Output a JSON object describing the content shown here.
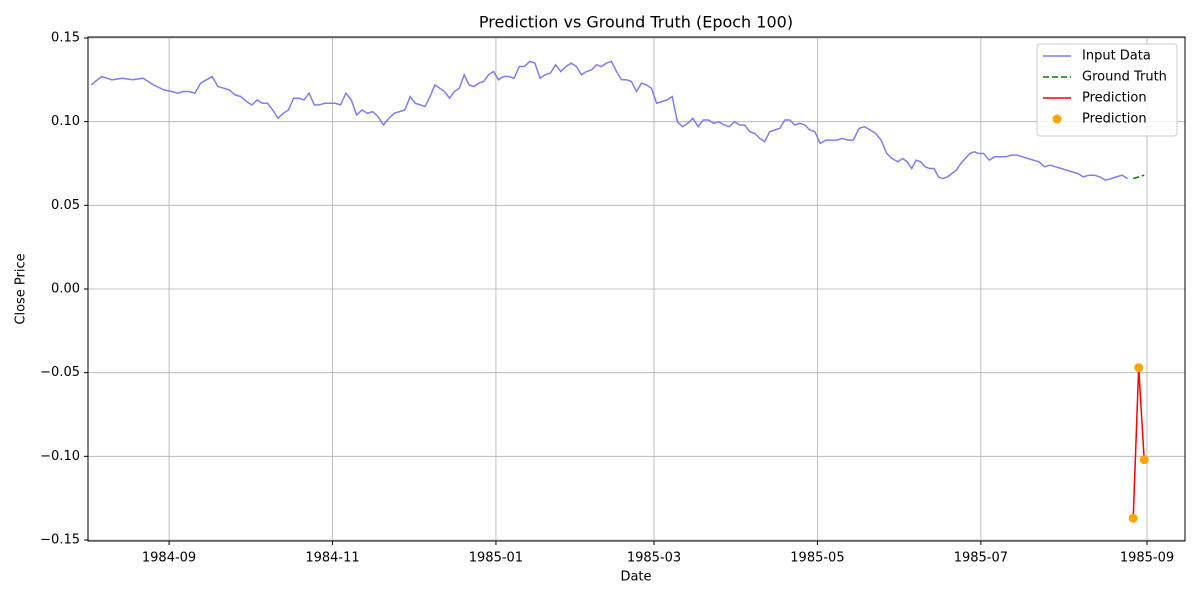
{
  "chart_data": {
    "type": "line",
    "title": "Prediction vs Ground Truth (Epoch 100)",
    "x_label": "Date",
    "y_label": "Close Price",
    "ylim": [
      -0.1506,
      0.1506
    ],
    "yticks": [
      {
        "value": -0.15,
        "label": "−0.15"
      },
      {
        "value": -0.1,
        "label": "−0.10"
      },
      {
        "value": -0.05,
        "label": "−0.05"
      },
      {
        "value": 0,
        "label": "0.00"
      },
      0.05,
      {
        "value": 0.1,
        "label": "0.10"
      },
      0.15
    ],
    "xlim": [
      "1984-08",
      "1985-09"
    ],
    "xticks": [
      "1984-09",
      "1984-11",
      "1985-01",
      "1985-03",
      "1985-05",
      "1985-07",
      "1985-09"
    ],
    "grid": true,
    "legend": "upper right",
    "series": [
      {
        "name": "Input Data",
        "type": "line",
        "color": "#7070f8",
        "alpha": 0.9,
        "x": [
          "1984-08",
          "1984-08",
          "1984-08",
          "1984-08",
          "1984-08",
          "1984-08",
          "1984-08",
          "1984-08",
          "1984-09",
          "1984-09",
          "1984-09",
          "1984-09",
          "1984-09",
          "1984-09",
          "1984-09",
          "1984-09",
          "1984-09",
          "1984-09",
          "1984-09",
          "1984-09",
          "1984-09",
          "1984-09",
          "1984-10",
          "1984-10",
          "1984-10",
          "1984-10",
          "1984-10",
          "1984-10",
          "1984-10",
          "1984-10",
          "1984-10",
          "1984-10",
          "1984-10",
          "1984-10",
          "1984-10",
          "1984-10",
          "1984-10",
          "1984-10",
          "1984-11",
          "1984-11",
          "1984-11",
          "1984-11",
          "1984-11",
          "1984-11",
          "1984-11",
          "1984-11",
          "1984-11",
          "1984-11",
          "1984-11",
          "1984-11",
          "1984-11",
          "1984-11",
          "1984-11",
          "1984-12",
          "1984-12",
          "1984-12",
          "1984-12",
          "1984-12",
          "1984-12",
          "1984-12",
          "1984-12",
          "1984-12",
          "1984-12",
          "1984-12",
          "1984-12",
          "1984-12",
          "1984-12",
          "1984-12",
          "1984-12",
          "1984-12",
          "1985-01",
          "1985-01",
          "1985-01",
          "1985-01",
          "1985-01",
          "1985-01",
          "1985-01",
          "1985-01",
          "1985-01",
          "1985-01",
          "1985-01",
          "1985-01",
          "1985-01",
          "1985-01",
          "1985-01",
          "1985-01",
          "1985-02",
          "1985-02",
          "1985-02",
          "1985-02",
          "1985-02",
          "1985-02",
          "1985-02",
          "1985-02",
          "1985-02",
          "1985-02",
          "1985-02",
          "1985-02",
          "1985-02",
          "1985-02",
          "1985-02",
          "1985-03",
          "1985-03",
          "1985-03",
          "1985-03",
          "1985-03",
          "1985-03",
          "1985-03",
          "1985-03",
          "1985-03",
          "1985-03",
          "1985-03",
          "1985-03",
          "1985-03",
          "1985-03",
          "1985-03",
          "1985-03",
          "1985-04",
          "1985-04",
          "1985-04",
          "1985-04",
          "1985-04",
          "1985-04",
          "1985-04",
          "1985-04",
          "1985-04",
          "1985-04",
          "1985-04",
          "1985-04",
          "1985-04",
          "1985-04",
          "1985-04",
          "1985-04",
          "1985-05",
          "1985-05",
          "1985-05",
          "1985-05",
          "1985-05",
          "1985-05",
          "1985-05",
          "1985-05",
          "1985-05",
          "1985-05",
          "1985-05",
          "1985-05",
          "1985-05",
          "1985-05",
          "1985-05",
          "1985-06",
          "1985-06",
          "1985-06",
          "1985-06",
          "1985-06",
          "1985-06",
          "1985-06",
          "1985-06",
          "1985-06",
          "1985-06",
          "1985-06",
          "1985-06",
          "1985-06",
          "1985-06",
          "1985-06",
          "1985-06",
          "1985-06",
          "1985-06",
          "1985-07",
          "1985-07",
          "1985-07",
          "1985-07",
          "1985-07",
          "1985-07",
          "1985-07",
          "1985-07",
          "1985-07",
          "1985-07",
          "1985-07",
          "1985-07",
          "1985-07",
          "1985-07",
          "1985-07",
          "1985-08",
          "1985-08",
          "1985-08",
          "1985-08",
          "1985-08",
          "1985-08",
          "1985-08",
          "1985-08",
          "1985-08",
          "1985-08",
          "1985-08",
          "1985-08"
        ],
        "values": [
          0.122,
          0.127,
          0.125,
          0.126,
          0.125,
          0.126,
          0.122,
          0.119,
          0.118,
          0.117,
          0.118,
          0.118,
          0.117,
          0.123,
          0.125,
          0.127,
          0.121,
          0.12,
          0.119,
          0.116,
          0.115,
          0.112,
          0.11,
          0.113,
          0.111,
          0.111,
          0.107,
          0.102,
          0.105,
          0.107,
          0.114,
          0.114,
          0.113,
          0.117,
          0.11,
          0.11,
          0.111,
          0.111,
          0.111,
          0.11,
          0.117,
          0.113,
          0.104,
          0.107,
          0.105,
          0.106,
          0.103,
          0.098,
          0.102,
          0.105,
          0.106,
          0.107,
          0.115,
          0.111,
          0.11,
          0.109,
          0.115,
          0.122,
          0.12,
          0.118,
          0.114,
          0.118,
          0.12,
          0.128,
          0.122,
          0.121,
          0.123,
          0.124,
          0.128,
          0.13,
          0.125,
          0.127,
          0.127,
          0.126,
          0.133,
          0.133,
          0.136,
          0.135,
          0.126,
          0.128,
          0.129,
          0.134,
          0.13,
          0.133,
          0.135,
          0.133,
          0.128,
          0.13,
          0.131,
          0.134,
          0.133,
          0.135,
          0.136,
          0.13,
          0.125,
          0.125,
          0.124,
          0.118,
          0.123,
          0.122,
          0.12,
          0.111,
          0.112,
          0.113,
          0.115,
          0.1,
          0.097,
          0.099,
          0.102,
          0.097,
          0.101,
          0.101,
          0.099,
          0.1,
          0.098,
          0.097,
          0.1,
          0.098,
          0.098,
          0.094,
          0.093,
          0.09,
          0.088,
          0.094,
          0.095,
          0.096,
          0.101,
          0.101,
          0.098,
          0.099,
          0.098,
          0.095,
          0.094,
          0.087,
          0.089,
          0.089,
          0.089,
          0.09,
          0.089,
          0.089,
          0.096,
          0.097,
          0.095,
          0.093,
          0.089,
          0.081,
          0.078,
          0.076,
          0.078,
          0.076,
          0.072,
          0.077,
          0.076,
          0.073,
          0.072,
          0.072,
          0.067,
          0.066,
          0.067,
          0.069,
          0.071,
          0.075,
          0.078,
          0.081,
          0.082,
          0.081,
          0.081,
          0.077,
          0.079,
          0.079,
          0.079,
          0.08,
          0.08,
          0.079,
          0.078,
          0.077,
          0.076,
          0.073,
          0.074,
          0.073,
          0.072,
          0.071,
          0.07,
          0.069,
          0.067,
          0.068,
          0.068,
          0.067,
          0.065,
          0.066,
          0.067,
          0.068,
          0.066
        ]
      },
      {
        "name": "Ground Truth",
        "type": "line",
        "color": "green",
        "dashed": true,
        "x": [
          "1985-08",
          "1985-08",
          "1985-08"
        ],
        "values": [
          0.066,
          0.067,
          0.068
        ]
      },
      {
        "name": "Prediction",
        "type": "line",
        "color": "red",
        "x": [
          "1985-08",
          "1985-08",
          "1985-08"
        ],
        "values": [
          -0.137,
          -0.047,
          -0.102
        ]
      },
      {
        "name": "Prediction",
        "type": "scatter",
        "color": "orange",
        "x": [
          "1985-08",
          "1985-08",
          "1985-08"
        ],
        "values": [
          -0.137,
          -0.047,
          -0.102
        ]
      }
    ]
  }
}
